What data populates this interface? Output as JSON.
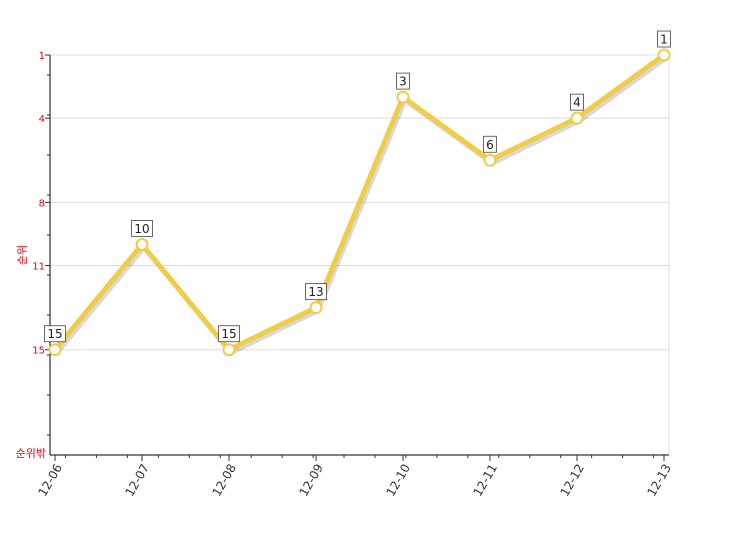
{
  "chart_data": {
    "type": "line",
    "title": "",
    "xlabel": "",
    "ylabel": "순위",
    "y_bottom_label": "순위밖",
    "y_reversed": true,
    "ylim": [
      1,
      20
    ],
    "y_ticks": [
      1,
      4,
      8,
      11,
      15
    ],
    "categories": [
      "12-06",
      "12-07",
      "12-08",
      "12-09",
      "12-10",
      "12-11",
      "12-12",
      "12-13"
    ],
    "series": [
      {
        "values": [
          15,
          10,
          15,
          13,
          3,
          6,
          4,
          1
        ],
        "color": "#f0cc47"
      }
    ],
    "grid": true,
    "legend": "none"
  }
}
